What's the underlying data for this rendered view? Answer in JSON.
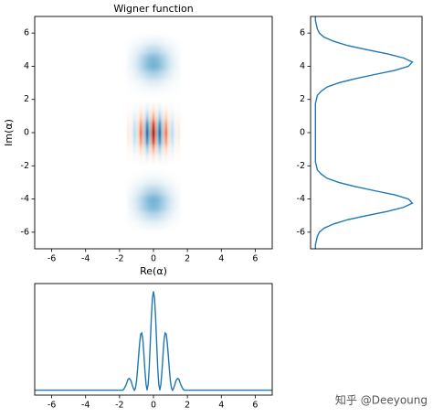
{
  "chart_data": [
    {
      "type": "heatmap",
      "title": "Wigner function",
      "xlabel": "Re(α)",
      "ylabel": "Im(α)",
      "colormap": "RdBu",
      "clim": [
        -2,
        2
      ],
      "xlim": [
        -7,
        7
      ],
      "ylim": [
        -7,
        7
      ],
      "xticks": [
        -6,
        -4,
        -2,
        0,
        2,
        4,
        6
      ],
      "yticks": [
        -6,
        -4,
        -2,
        0,
        2,
        4,
        6
      ],
      "x": [
        -1.5,
        -1.375,
        -1.25,
        -1.125,
        -1,
        -0.875,
        -0.75,
        -0.625,
        -0.5,
        -0.375,
        -0.25,
        -0.125,
        0,
        0.125,
        0.25,
        0.375,
        0.5,
        0.625,
        0.75,
        0.875,
        1,
        1.125,
        1.25,
        1.375,
        1.5
      ],
      "y": [
        -5.5,
        -5,
        -4.5,
        -4,
        -3.5,
        -3,
        -2.5,
        -2,
        -1.5,
        -1,
        -0.5,
        0,
        0.5,
        1,
        1.5,
        2,
        2.5,
        3,
        3.5,
        4,
        4.5,
        5,
        5.5
      ],
      "z": [
        [
          0.02,
          0.03,
          0.04,
          0.05,
          0.07,
          0.08,
          0.1,
          0.12,
          0.14,
          0.16,
          0.17,
          0.18,
          0.18,
          0.18,
          0.17,
          0.16,
          0.14,
          0.12,
          0.1,
          0.08,
          0.07,
          0.05,
          0.04,
          0.03,
          0.02
        ],
        [
          0.06,
          0.08,
          0.11,
          0.15,
          0.2,
          0.25,
          0.3,
          0.36,
          0.41,
          0.46,
          0.5,
          0.52,
          0.53,
          0.52,
          0.5,
          0.46,
          0.41,
          0.36,
          0.3,
          0.25,
          0.2,
          0.15,
          0.11,
          0.08,
          0.06
        ],
        [
          0.1,
          0.14,
          0.19,
          0.25,
          0.34,
          0.43,
          0.52,
          0.62,
          0.71,
          0.79,
          0.86,
          0.89,
          0.91,
          0.89,
          0.86,
          0.79,
          0.71,
          0.62,
          0.52,
          0.43,
          0.34,
          0.25,
          0.19,
          0.14,
          0.1
        ],
        [
          0.11,
          0.14,
          0.2,
          0.27,
          0.36,
          0.45,
          0.55,
          0.65,
          0.75,
          0.84,
          0.9,
          0.94,
          0.96,
          0.94,
          0.9,
          0.84,
          0.75,
          0.65,
          0.55,
          0.45,
          0.36,
          0.27,
          0.2,
          0.14,
          0.11
        ],
        [
          0.07,
          0.09,
          0.13,
          0.17,
          0.23,
          0.29,
          0.35,
          0.41,
          0.48,
          0.53,
          0.57,
          0.6,
          0.61,
          0.6,
          0.57,
          0.53,
          0.48,
          0.41,
          0.35,
          0.29,
          0.23,
          0.17,
          0.13,
          0.09,
          0.07
        ],
        [
          0.03,
          0.04,
          0.05,
          0.07,
          0.09,
          0.11,
          0.14,
          0.16,
          0.19,
          0.21,
          0.23,
          0.24,
          0.24,
          0.24,
          0.23,
          0.21,
          0.19,
          0.16,
          0.14,
          0.11,
          0.09,
          0.07,
          0.05,
          0.04,
          0.03
        ],
        [
          0.01,
          0.01,
          0.01,
          0.02,
          0.02,
          0.03,
          0.03,
          0.04,
          0.04,
          0.05,
          0.05,
          0.06,
          0.06,
          0.06,
          0.05,
          0.05,
          0.04,
          0.04,
          0.03,
          0.03,
          0.02,
          0.02,
          0.01,
          0.01,
          0.01
        ],
        [
          0,
          0,
          0,
          0,
          0,
          0,
          0,
          0,
          0,
          0,
          0,
          0,
          0,
          0,
          0,
          0,
          0,
          0,
          0,
          0,
          0,
          0,
          0,
          0,
          0
        ],
        [
          -0.02,
          -0.02,
          0.02,
          0.06,
          0.04,
          -0.05,
          -0.13,
          -0.07,
          0.09,
          0.19,
          0.1,
          -0.11,
          -0.22,
          -0.11,
          0.1,
          0.19,
          0.09,
          -0.07,
          -0.13,
          -0.05,
          0.04,
          0.06,
          0.02,
          -0.02,
          -0.02
        ],
        [
          -0.08,
          -0.06,
          0.08,
          0.21,
          0.14,
          -0.17,
          -0.42,
          -0.25,
          0.29,
          0.64,
          0.35,
          -0.36,
          -0.74,
          -0.36,
          0.35,
          0.64,
          0.29,
          -0.25,
          -0.42,
          -0.17,
          0.14,
          0.21,
          0.08,
          -0.06,
          -0.08
        ],
        [
          -0.17,
          -0.12,
          0.16,
          0.44,
          0.29,
          -0.37,
          -0.89,
          -0.53,
          0.61,
          1.36,
          0.73,
          -0.76,
          -1.56,
          -0.76,
          0.73,
          1.36,
          0.61,
          -0.53,
          -0.89,
          -0.37,
          0.29,
          0.44,
          0.16,
          -0.12,
          -0.17
        ],
        [
          -0.22,
          -0.15,
          0.21,
          0.56,
          0.37,
          -0.47,
          -1.14,
          -0.68,
          0.78,
          1.74,
          0.94,
          -0.98,
          -2,
          -0.98,
          0.94,
          1.74,
          0.78,
          -0.68,
          -1.14,
          -0.47,
          0.37,
          0.56,
          0.21,
          -0.15,
          -0.22
        ],
        [
          -0.17,
          -0.12,
          0.16,
          0.44,
          0.29,
          -0.37,
          -0.89,
          -0.53,
          0.61,
          1.36,
          0.73,
          -0.76,
          -1.56,
          -0.76,
          0.73,
          1.36,
          0.61,
          -0.53,
          -0.89,
          -0.37,
          0.29,
          0.44,
          0.16,
          -0.12,
          -0.17
        ],
        [
          -0.08,
          -0.06,
          0.08,
          0.21,
          0.14,
          -0.17,
          -0.42,
          -0.25,
          0.29,
          0.64,
          0.35,
          -0.36,
          -0.74,
          -0.36,
          0.35,
          0.64,
          0.29,
          -0.25,
          -0.42,
          -0.17,
          0.14,
          0.21,
          0.08,
          -0.06,
          -0.08
        ],
        [
          -0.02,
          -0.02,
          0.02,
          0.06,
          0.04,
          -0.05,
          -0.13,
          -0.07,
          0.09,
          0.19,
          0.1,
          -0.11,
          -0.22,
          -0.11,
          0.1,
          0.19,
          0.09,
          -0.07,
          -0.13,
          -0.05,
          0.04,
          0.06,
          0.02,
          -0.02,
          -0.02
        ],
        [
          0,
          0,
          0,
          0,
          0,
          0,
          0,
          0,
          0,
          0,
          0,
          0,
          0,
          0,
          0,
          0,
          0,
          0,
          0,
          0,
          0,
          0,
          0,
          0,
          0
        ],
        [
          0.01,
          0.01,
          0.01,
          0.02,
          0.02,
          0.03,
          0.03,
          0.04,
          0.04,
          0.05,
          0.05,
          0.06,
          0.06,
          0.06,
          0.05,
          0.05,
          0.04,
          0.04,
          0.03,
          0.03,
          0.02,
          0.02,
          0.01,
          0.01,
          0.01
        ],
        [
          0.03,
          0.04,
          0.05,
          0.07,
          0.09,
          0.11,
          0.14,
          0.16,
          0.19,
          0.21,
          0.23,
          0.24,
          0.24,
          0.24,
          0.23,
          0.21,
          0.19,
          0.16,
          0.14,
          0.11,
          0.09,
          0.07,
          0.05,
          0.04,
          0.03
        ],
        [
          0.07,
          0.09,
          0.13,
          0.17,
          0.23,
          0.29,
          0.35,
          0.41,
          0.48,
          0.53,
          0.57,
          0.6,
          0.61,
          0.6,
          0.57,
          0.53,
          0.48,
          0.41,
          0.35,
          0.29,
          0.23,
          0.17,
          0.13,
          0.09,
          0.07
        ],
        [
          0.11,
          0.14,
          0.2,
          0.27,
          0.36,
          0.45,
          0.55,
          0.65,
          0.75,
          0.84,
          0.9,
          0.94,
          0.96,
          0.94,
          0.9,
          0.84,
          0.75,
          0.65,
          0.55,
          0.45,
          0.36,
          0.27,
          0.2,
          0.14,
          0.11
        ],
        [
          0.1,
          0.14,
          0.19,
          0.25,
          0.34,
          0.43,
          0.52,
          0.62,
          0.71,
          0.79,
          0.86,
          0.89,
          0.91,
          0.89,
          0.86,
          0.79,
          0.71,
          0.62,
          0.52,
          0.43,
          0.34,
          0.25,
          0.19,
          0.14,
          0.1
        ],
        [
          0.06,
          0.08,
          0.11,
          0.15,
          0.2,
          0.25,
          0.3,
          0.36,
          0.41,
          0.46,
          0.5,
          0.52,
          0.53,
          0.52,
          0.5,
          0.46,
          0.41,
          0.36,
          0.3,
          0.25,
          0.2,
          0.15,
          0.11,
          0.08,
          0.06
        ],
        [
          0.02,
          0.03,
          0.04,
          0.05,
          0.07,
          0.08,
          0.1,
          0.12,
          0.14,
          0.16,
          0.17,
          0.18,
          0.18,
          0.18,
          0.17,
          0.16,
          0.14,
          0.12,
          0.1,
          0.08,
          0.07,
          0.05,
          0.04,
          0.03,
          0.02
        ]
      ]
    },
    {
      "type": "line",
      "orientation": "vertical",
      "color": "#1f77b4",
      "ylim": [
        -7,
        7
      ],
      "yticks": [
        -6,
        -4,
        -2,
        0,
        2,
        4,
        6
      ],
      "xlim": [
        -0.05,
        1.1
      ],
      "y": [
        -7,
        -6.75,
        -6.5,
        -6.25,
        -6,
        -5.75,
        -5.5,
        -5.25,
        -5,
        -4.75,
        -4.5,
        -4.25,
        -4,
        -3.75,
        -3.5,
        -3.25,
        -3,
        -2.75,
        -2.5,
        -2.25,
        -2,
        -1.75,
        -1.5,
        -1.25,
        -1,
        -0.75,
        -0.5,
        -0.25,
        0,
        0.25,
        0.5,
        0.75,
        1,
        1.25,
        1.5,
        1.75,
        2,
        2.25,
        2.5,
        2.75,
        3,
        3.25,
        3.5,
        3.75,
        4,
        4.25,
        4.5,
        4.75,
        5,
        5.25,
        5.5,
        5.75,
        6,
        6.25,
        6.5,
        6.75,
        7
      ],
      "values": [
        0,
        0,
        0.01,
        0.02,
        0.04,
        0.09,
        0.19,
        0.33,
        0.53,
        0.74,
        0.91,
        1.0,
        0.96,
        0.82,
        0.61,
        0.41,
        0.24,
        0.12,
        0.06,
        0.02,
        0.01,
        0,
        0,
        0,
        0,
        0,
        0,
        0,
        0,
        0,
        0,
        0,
        0,
        0,
        0,
        0,
        0.01,
        0.02,
        0.06,
        0.12,
        0.24,
        0.41,
        0.61,
        0.82,
        0.96,
        1.0,
        0.91,
        0.74,
        0.53,
        0.33,
        0.19,
        0.09,
        0.04,
        0.02,
        0.01,
        0,
        0
      ]
    },
    {
      "type": "line",
      "orientation": "horizontal",
      "color": "#1f77b4",
      "xlim": [
        -7,
        7
      ],
      "xticks": [
        -6,
        -4,
        -2,
        0,
        2,
        4,
        6
      ],
      "ylim": [
        -0.05,
        1.08
      ],
      "x": [
        -7,
        -2,
        -1.9375,
        -1.875,
        -1.8125,
        -1.75,
        -1.6875,
        -1.625,
        -1.5625,
        -1.5,
        -1.4375,
        -1.375,
        -1.3125,
        -1.25,
        -1.1875,
        -1.125,
        -1.0625,
        -1,
        -0.9375,
        -0.875,
        -0.8125,
        -0.75,
        -0.6875,
        -0.625,
        -0.5625,
        -0.5,
        -0.4375,
        -0.375,
        -0.3125,
        -0.25,
        -0.1875,
        -0.125,
        -0.0625,
        0,
        0.0625,
        0.125,
        0.1875,
        0.25,
        0.3125,
        0.375,
        0.4375,
        0.5,
        0.5625,
        0.625,
        0.6875,
        0.75,
        0.8125,
        0.875,
        0.9375,
        1,
        1.0625,
        1.125,
        1.1875,
        1.25,
        1.3125,
        1.375,
        1.4375,
        1.5,
        1.5625,
        1.625,
        1.6875,
        1.75,
        1.8125,
        1.875,
        1.9375,
        2,
        7
      ],
      "values": [
        0,
        0,
        0,
        0,
        0,
        0.01,
        0.03,
        0.05,
        0.08,
        0.11,
        0.12,
        0.11,
        0.09,
        0.05,
        0.02,
        0,
        0.02,
        0.09,
        0.21,
        0.35,
        0.48,
        0.57,
        0.58,
        0.51,
        0.36,
        0.19,
        0.06,
        0,
        0.06,
        0.23,
        0.48,
        0.74,
        0.93,
        1.0,
        0.93,
        0.74,
        0.48,
        0.23,
        0.06,
        0,
        0.06,
        0.19,
        0.36,
        0.51,
        0.58,
        0.57,
        0.48,
        0.35,
        0.21,
        0.09,
        0.02,
        0,
        0.02,
        0.05,
        0.09,
        0.11,
        0.12,
        0.11,
        0.08,
        0.05,
        0.03,
        0.01,
        0,
        0,
        0,
        0,
        0
      ]
    }
  ],
  "watermark": "知乎 @Deeyoung"
}
